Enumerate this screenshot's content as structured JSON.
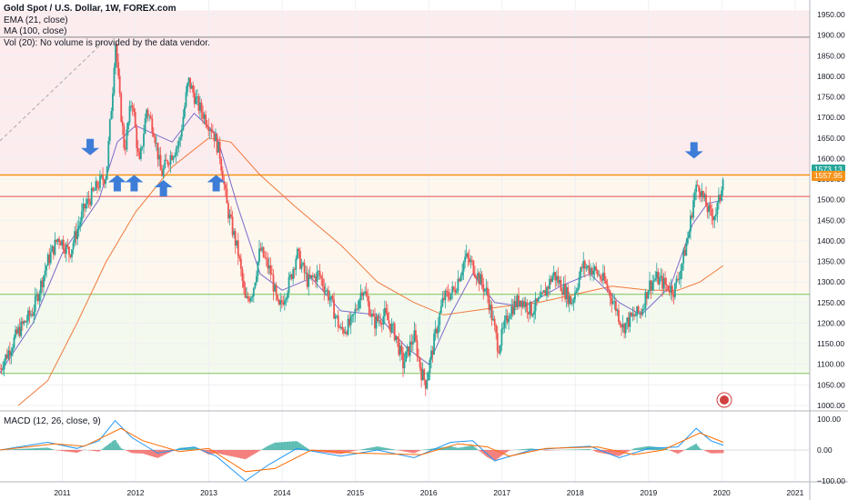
{
  "legend": {
    "title": "Gold Spot / U.S. Dollar, 1W, FOREX.com",
    "ema": "EMA (21, close)",
    "ma": "MA (100, close)",
    "vol": "Vol (20): No volume is provided by the data vendor."
  },
  "macd_label": "MACD (12, 26, close, 9)",
  "colors": {
    "up": "#26a69a",
    "down": "#ef5350",
    "ema": "#7b6cc9",
    "ma": "#f07b3c",
    "arrow": "#3d7dd8",
    "resistance": "#f7931a",
    "support_red": "#e44c4c",
    "support_green": "#7cc35c"
  },
  "chart_data": [
    {
      "type": "candlestick",
      "title": "Gold Spot / U.S. Dollar, 1W, FOREX.com",
      "y_axis": {
        "min": 1000,
        "max": 1950,
        "position": "right",
        "ticks": [
          "1950.00",
          "1900.00",
          "1850.00",
          "1800.00",
          "1750.00",
          "1700.00",
          "1650.00",
          "1600.00",
          "1550.00",
          "1500.00",
          "1450.00",
          "1400.00",
          "1350.00",
          "1300.00",
          "1250.00",
          "1200.00",
          "1150.00",
          "1100.00",
          "1050.00",
          "1000.00"
        ]
      },
      "x_axis": {
        "ticks": [
          "2011",
          "2012",
          "2013",
          "2014",
          "2015",
          "2016",
          "2017",
          "2018",
          "2019",
          "2020",
          "2021"
        ],
        "start": 2010.15,
        "end": 2021.2
      },
      "grid": true,
      "price_labels": {
        "last": "1573.13",
        "secondary": "1557.95"
      },
      "horizontal_lines": [
        {
          "price": 1895,
          "color": "#888888"
        },
        {
          "price": 1560,
          "color": "#f7931a"
        },
        {
          "price": 1508,
          "color": "#e44c4c"
        },
        {
          "price": 1270,
          "color": "#7cc35c"
        },
        {
          "price": 1078,
          "color": "#7cc35c"
        }
      ],
      "zones": [
        {
          "from": 1560,
          "to": 1960,
          "color": "#fdecee"
        },
        {
          "from": 1270,
          "to": 1560,
          "color": "#fdf7ee"
        },
        {
          "from": 1078,
          "to": 1270,
          "color": "#f4f9ee"
        }
      ],
      "arrows": [
        {
          "t": 2011.38,
          "price": 1608,
          "dir": "down"
        },
        {
          "t": 2011.75,
          "price": 1560,
          "dir": "up"
        },
        {
          "t": 2011.98,
          "price": 1560,
          "dir": "up"
        },
        {
          "t": 2012.38,
          "price": 1548,
          "dir": "up"
        },
        {
          "t": 2013.1,
          "price": 1560,
          "dir": "up"
        },
        {
          "t": 2019.62,
          "price": 1600,
          "dir": "down"
        }
      ],
      "price_path": [
        [
          2010.15,
          1090
        ],
        [
          2010.4,
          1180
        ],
        [
          2010.6,
          1230
        ],
        [
          2010.8,
          1350
        ],
        [
          2010.95,
          1410
        ],
        [
          2011.1,
          1370
        ],
        [
          2011.3,
          1480
        ],
        [
          2011.5,
          1540
        ],
        [
          2011.6,
          1560
        ],
        [
          2011.7,
          1800
        ],
        [
          2011.72,
          1900
        ],
        [
          2011.78,
          1750
        ],
        [
          2011.85,
          1620
        ],
        [
          2011.95,
          1750
        ],
        [
          2012.05,
          1580
        ],
        [
          2012.15,
          1720
        ],
        [
          2012.25,
          1670
        ],
        [
          2012.35,
          1560
        ],
        [
          2012.45,
          1600
        ],
        [
          2012.6,
          1640
        ],
        [
          2012.72,
          1790
        ],
        [
          2012.85,
          1730
        ],
        [
          2012.95,
          1700
        ],
        [
          2013.05,
          1670
        ],
        [
          2013.15,
          1610
        ],
        [
          2013.25,
          1480
        ],
        [
          2013.4,
          1370
        ],
        [
          2013.5,
          1250
        ],
        [
          2013.6,
          1280
        ],
        [
          2013.7,
          1380
        ],
        [
          2013.85,
          1320
        ],
        [
          2013.95,
          1230
        ],
        [
          2014.1,
          1300
        ],
        [
          2014.2,
          1370
        ],
        [
          2014.35,
          1300
        ],
        [
          2014.5,
          1320
        ],
        [
          2014.65,
          1260
        ],
        [
          2014.8,
          1180
        ],
        [
          2014.95,
          1200
        ],
        [
          2015.1,
          1290
        ],
        [
          2015.25,
          1200
        ],
        [
          2015.4,
          1220
        ],
        [
          2015.55,
          1170
        ],
        [
          2015.65,
          1100
        ],
        [
          2015.8,
          1170
        ],
        [
          2015.9,
          1080
        ],
        [
          2015.96,
          1055
        ],
        [
          2016.1,
          1180
        ],
        [
          2016.2,
          1260
        ],
        [
          2016.35,
          1280
        ],
        [
          2016.5,
          1360
        ],
        [
          2016.6,
          1340
        ],
        [
          2016.8,
          1270
        ],
        [
          2016.95,
          1140
        ],
        [
          2017.1,
          1230
        ],
        [
          2017.25,
          1260
        ],
        [
          2017.4,
          1230
        ],
        [
          2017.55,
          1260
        ],
        [
          2017.7,
          1320
        ],
        [
          2017.85,
          1280
        ],
        [
          2017.95,
          1250
        ],
        [
          2018.1,
          1340
        ],
        [
          2018.25,
          1330
        ],
        [
          2018.4,
          1300
        ],
        [
          2018.55,
          1240
        ],
        [
          2018.65,
          1190
        ],
        [
          2018.75,
          1210
        ],
        [
          2018.9,
          1230
        ],
        [
          2019.0,
          1290
        ],
        [
          2019.1,
          1310
        ],
        [
          2019.25,
          1290
        ],
        [
          2019.35,
          1280
        ],
        [
          2019.45,
          1340
        ],
        [
          2019.55,
          1420
        ],
        [
          2019.62,
          1510
        ],
        [
          2019.68,
          1540
        ],
        [
          2019.75,
          1500
        ],
        [
          2019.85,
          1460
        ],
        [
          2019.92,
          1470
        ],
        [
          2019.98,
          1510
        ],
        [
          2020.02,
          1573
        ]
      ],
      "ema_path": [
        [
          2010.15,
          1080
        ],
        [
          2010.6,
          1200
        ],
        [
          2011.0,
          1370
        ],
        [
          2011.5,
          1500
        ],
        [
          2011.75,
          1640
        ],
        [
          2012.0,
          1680
        ],
        [
          2012.5,
          1640
        ],
        [
          2012.8,
          1710
        ],
        [
          2013.1,
          1660
        ],
        [
          2013.4,
          1480
        ],
        [
          2013.7,
          1320
        ],
        [
          2014.0,
          1280
        ],
        [
          2014.4,
          1310
        ],
        [
          2014.8,
          1230
        ],
        [
          2015.3,
          1220
        ],
        [
          2015.7,
          1140
        ],
        [
          2016.0,
          1100
        ],
        [
          2016.3,
          1220
        ],
        [
          2016.6,
          1320
        ],
        [
          2016.9,
          1250
        ],
        [
          2017.3,
          1240
        ],
        [
          2017.8,
          1290
        ],
        [
          2018.2,
          1320
        ],
        [
          2018.6,
          1250
        ],
        [
          2018.9,
          1220
        ],
        [
          2019.3,
          1290
        ],
        [
          2019.6,
          1440
        ],
        [
          2019.8,
          1490
        ],
        [
          2020.02,
          1500
        ]
      ],
      "ma_path": [
        [
          2010.4,
          1000
        ],
        [
          2010.8,
          1060
        ],
        [
          2011.2,
          1200
        ],
        [
          2011.6,
          1350
        ],
        [
          2012.0,
          1470
        ],
        [
          2012.5,
          1580
        ],
        [
          2013.0,
          1650
        ],
        [
          2013.3,
          1640
        ],
        [
          2013.7,
          1560
        ],
        [
          2014.2,
          1480
        ],
        [
          2014.8,
          1390
        ],
        [
          2015.3,
          1300
        ],
        [
          2015.8,
          1250
        ],
        [
          2016.2,
          1220
        ],
        [
          2016.6,
          1230
        ],
        [
          2017.0,
          1240
        ],
        [
          2017.5,
          1250
        ],
        [
          2018.0,
          1270
        ],
        [
          2018.5,
          1290
        ],
        [
          2019.0,
          1280
        ],
        [
          2019.4,
          1280
        ],
        [
          2019.7,
          1300
        ],
        [
          2020.02,
          1340
        ]
      ]
    },
    {
      "type": "bar",
      "title": "MACD (12, 26, close, 9)",
      "y_axis": {
        "ticks": [
          "100.00",
          "0.00",
          "−100.00"
        ],
        "min": -115,
        "max": 110
      },
      "macd_path": [
        [
          2010.15,
          0
        ],
        [
          2010.8,
          25
        ],
        [
          2011.2,
          5
        ],
        [
          2011.5,
          30
        ],
        [
          2011.72,
          95
        ],
        [
          2011.95,
          40
        ],
        [
          2012.3,
          -10
        ],
        [
          2012.8,
          10
        ],
        [
          2013.1,
          -20
        ],
        [
          2013.3,
          -60
        ],
        [
          2013.5,
          -100
        ],
        [
          2013.8,
          -50
        ],
        [
          2014.2,
          5
        ],
        [
          2014.8,
          -20
        ],
        [
          2015.3,
          0
        ],
        [
          2015.8,
          -25
        ],
        [
          2016.3,
          25
        ],
        [
          2016.6,
          30
        ],
        [
          2016.9,
          -35
        ],
        [
          2017.4,
          0
        ],
        [
          2017.9,
          8
        ],
        [
          2018.2,
          12
        ],
        [
          2018.6,
          -25
        ],
        [
          2019.0,
          5
        ],
        [
          2019.4,
          10
        ],
        [
          2019.65,
          70
        ],
        [
          2019.85,
          30
        ],
        [
          2020.02,
          15
        ]
      ],
      "signal_path": [
        [
          2010.15,
          0
        ],
        [
          2010.9,
          20
        ],
        [
          2011.3,
          12
        ],
        [
          2011.8,
          70
        ],
        [
          2012.1,
          30
        ],
        [
          2012.6,
          -5
        ],
        [
          2013.0,
          5
        ],
        [
          2013.5,
          -70
        ],
        [
          2013.9,
          -60
        ],
        [
          2014.4,
          0
        ],
        [
          2015.0,
          -10
        ],
        [
          2015.9,
          -15
        ],
        [
          2016.4,
          20
        ],
        [
          2016.8,
          10
        ],
        [
          2017.1,
          -20
        ],
        [
          2017.6,
          5
        ],
        [
          2018.3,
          10
        ],
        [
          2018.8,
          -15
        ],
        [
          2019.2,
          0
        ],
        [
          2019.7,
          55
        ],
        [
          2020.02,
          25
        ]
      ]
    }
  ]
}
